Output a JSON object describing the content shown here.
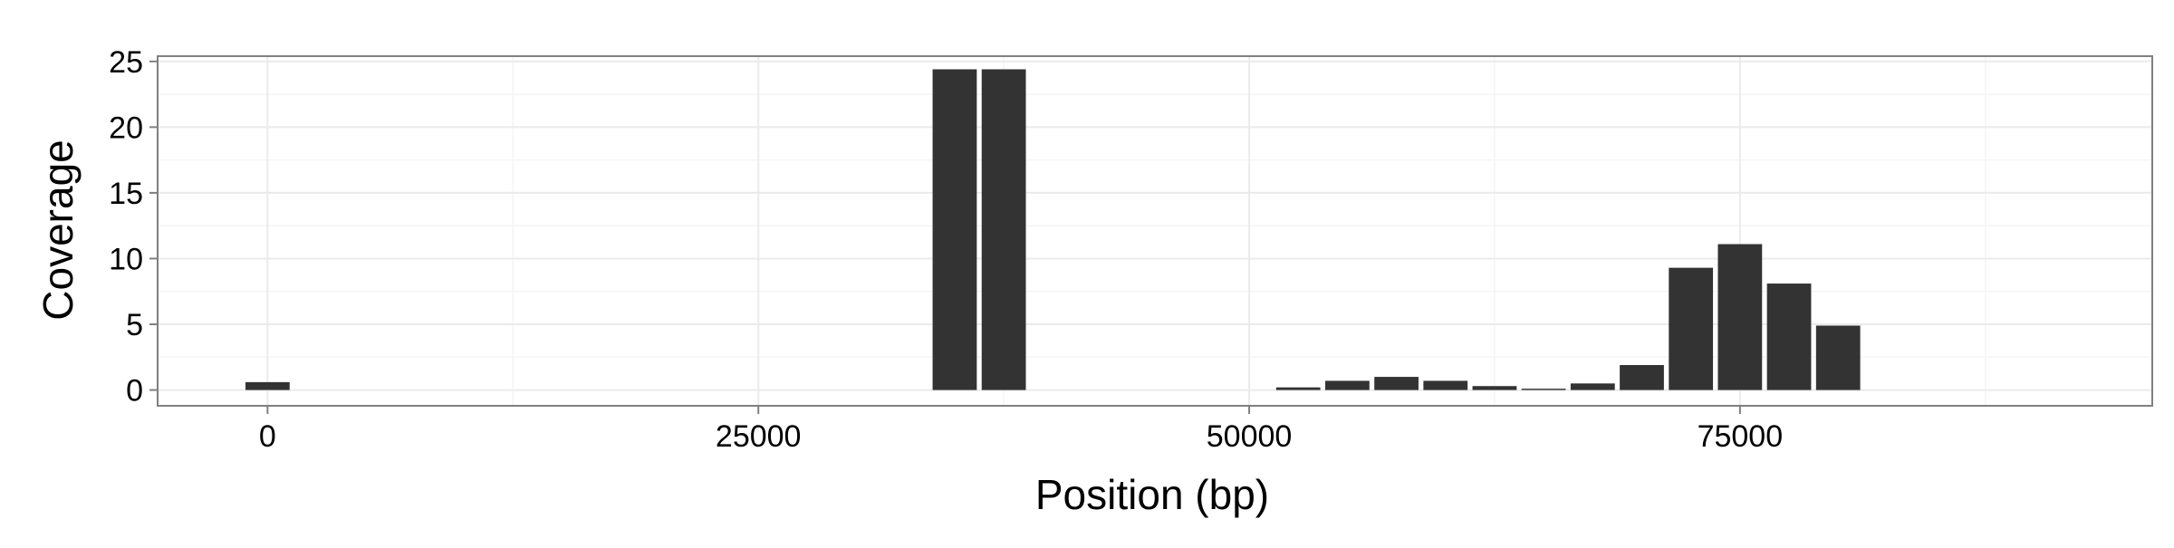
{
  "chart_data": {
    "type": "bar",
    "title": "",
    "xlabel": "Position (bp)",
    "ylabel": "Coverage",
    "xlim": [
      -5600,
      96000
    ],
    "ylim": [
      -1.2,
      25.4
    ],
    "x_ticks": [
      0,
      25000,
      50000,
      75000
    ],
    "x_tick_labels": [
      "0",
      "25000",
      "50000",
      "75000"
    ],
    "y_ticks": [
      0,
      5,
      10,
      15,
      20,
      25
    ],
    "y_tick_labels": [
      "0",
      "5",
      "10",
      "15",
      "20",
      "25"
    ],
    "bar_width": 2250,
    "grid": true,
    "legend": "none",
    "bars": [
      {
        "x": 0,
        "y": 0.6
      },
      {
        "x": 35000,
        "y": 24.4
      },
      {
        "x": 37500,
        "y": 24.4
      },
      {
        "x": 52500,
        "y": 0.2
      },
      {
        "x": 55000,
        "y": 0.7
      },
      {
        "x": 57500,
        "y": 1.0
      },
      {
        "x": 60000,
        "y": 0.7
      },
      {
        "x": 62500,
        "y": 0.3
      },
      {
        "x": 65000,
        "y": 0.1
      },
      {
        "x": 67500,
        "y": 0.5
      },
      {
        "x": 70000,
        "y": 1.9
      },
      {
        "x": 72500,
        "y": 9.3
      },
      {
        "x": 75000,
        "y": 11.1
      },
      {
        "x": 77500,
        "y": 8.1
      },
      {
        "x": 80000,
        "y": 4.9
      }
    ],
    "colors": {
      "bar": "#333333",
      "panel_border": "#808080",
      "grid_major": "#ebebeb",
      "grid_minor": "#f5f5f5",
      "text": "#000000"
    }
  }
}
